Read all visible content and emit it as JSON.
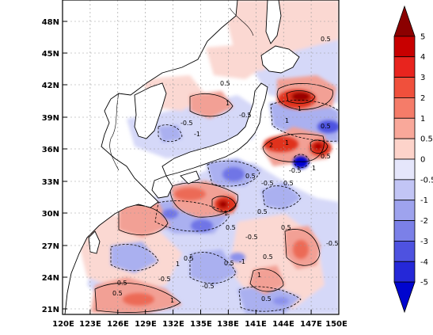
{
  "map": {
    "lon_labels": [
      "120E",
      "123E",
      "126E",
      "129E",
      "132E",
      "135E",
      "138E",
      "141E",
      "144E",
      "147E",
      "150E"
    ],
    "lat_labels": [
      "21N",
      "24N",
      "27N",
      "30N",
      "33N",
      "36N",
      "39N",
      "42N",
      "45N",
      "48N"
    ],
    "contour_labels": [
      "-0.5",
      "0.5",
      "1",
      "-1",
      "-0.5",
      "1",
      "0.5",
      "-0.5",
      "0.5",
      "1",
      "-0.5",
      "0.5",
      "1",
      "0.5",
      "-0.5",
      "1",
      "0.5",
      "-1",
      "0.5",
      "-0.5",
      "1",
      "0.5",
      "-0.5",
      "0.5",
      "0.5",
      "-0.5",
      "0.5",
      "1",
      "0.5",
      "-0.5",
      "1",
      "2",
      "-1",
      "0.5",
      "0.5"
    ]
  },
  "colorbar": {
    "levels": [
      "5",
      "4",
      "3",
      "2",
      "1",
      "0.5",
      "0",
      "-0.5",
      "-1",
      "-2",
      "-3",
      "-4",
      "-5"
    ],
    "colors": [
      "#8b0000",
      "#c80000",
      "#e8241e",
      "#f0503c",
      "#f57c69",
      "#f9a89a",
      "#fdd3ca",
      "#e5e6fb",
      "#c2c5f5",
      "#9ea3ee",
      "#7b80e8",
      "#4e52e0",
      "#2528d8",
      "#0005cf"
    ]
  }
}
